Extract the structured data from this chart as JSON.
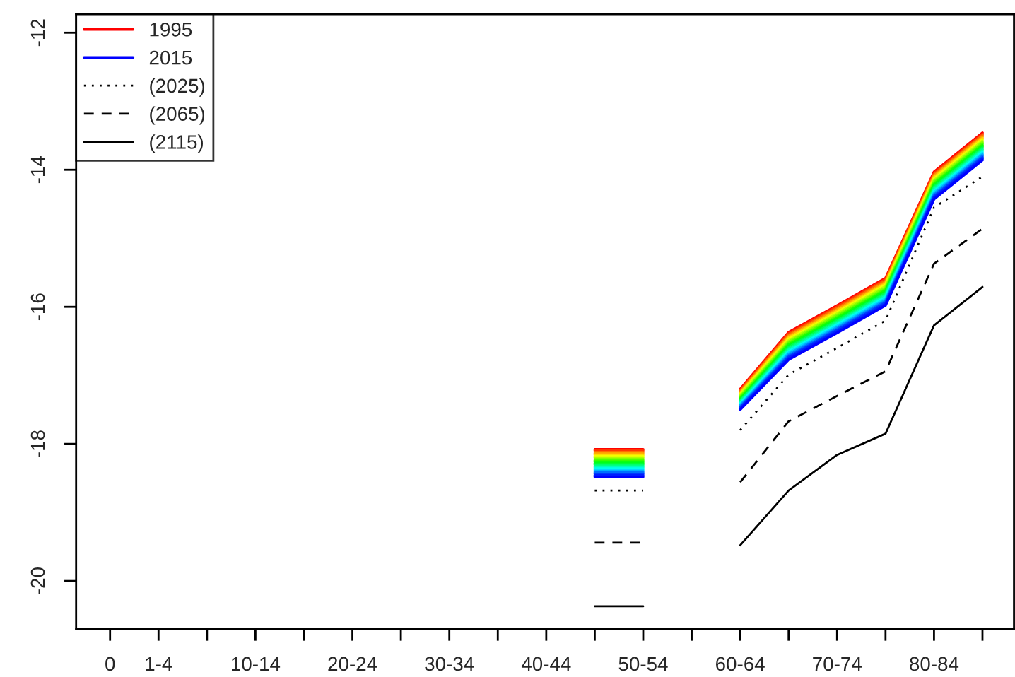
{
  "chart_data": {
    "type": "line",
    "categories": [
      "0",
      "1-4",
      null,
      "10-14",
      null,
      "20-24",
      null,
      "30-34",
      null,
      "40-44",
      null,
      "50-54",
      null,
      "60-64",
      null,
      "70-74",
      null,
      "80-84",
      null
    ],
    "ylim": [
      -20.7,
      -11.73
    ],
    "yticks": [
      -20,
      -18,
      -16,
      -14,
      -12
    ],
    "grid": false,
    "legend": "top left",
    "line_style": "solid",
    "series": [
      {
        "name": "1995",
        "color": "#ff0000",
        "values": [
          null,
          null,
          null,
          null,
          null,
          null,
          null,
          null,
          null,
          null,
          -18.08,
          -18.08,
          null,
          -17.2,
          -16.37,
          -15.98,
          -15.58,
          -14.03,
          -13.46
        ]
      },
      {
        "color": "#ff3500",
        "values": [
          null,
          null,
          null,
          null,
          null,
          null,
          null,
          null,
          null,
          null,
          -18.1,
          -18.1,
          null,
          -17.22,
          -16.39,
          -16.0,
          -15.6,
          -14.05,
          -13.48
        ]
      },
      {
        "color": "#ff6b00",
        "values": [
          null,
          null,
          null,
          null,
          null,
          null,
          null,
          null,
          null,
          null,
          -18.12,
          -18.12,
          null,
          -17.23,
          -16.41,
          -16.02,
          -15.62,
          -14.07,
          -13.5
        ]
      },
      {
        "color": "#ffa100",
        "values": [
          null,
          null,
          null,
          null,
          null,
          null,
          null,
          null,
          null,
          null,
          -18.14,
          -18.14,
          null,
          -17.25,
          -16.43,
          -16.04,
          -15.64,
          -14.09,
          -13.52
        ]
      },
      {
        "color": "#ffd600",
        "values": [
          null,
          null,
          null,
          null,
          null,
          null,
          null,
          null,
          null,
          null,
          -18.16,
          -18.16,
          null,
          -17.26,
          -16.45,
          -16.06,
          -15.66,
          -14.11,
          -13.54
        ]
      },
      {
        "color": "#f2ff00",
        "values": [
          null,
          null,
          null,
          null,
          null,
          null,
          null,
          null,
          null,
          null,
          -18.18,
          -18.18,
          null,
          -17.28,
          -16.47,
          -16.08,
          -15.68,
          -14.13,
          -13.56
        ]
      },
      {
        "color": "#bdff00",
        "values": [
          null,
          null,
          null,
          null,
          null,
          null,
          null,
          null,
          null,
          null,
          -18.2,
          -18.2,
          null,
          -17.29,
          -16.49,
          -16.1,
          -15.7,
          -14.15,
          -13.58
        ]
      },
      {
        "color": "#87ff00",
        "values": [
          null,
          null,
          null,
          null,
          null,
          null,
          null,
          null,
          null,
          null,
          -18.22,
          -18.22,
          null,
          -17.31,
          -16.51,
          -16.12,
          -15.72,
          -14.17,
          -13.6
        ]
      },
      {
        "color": "#52ff00",
        "values": [
          null,
          null,
          null,
          null,
          null,
          null,
          null,
          null,
          null,
          null,
          -18.24,
          -18.24,
          null,
          -17.32,
          -16.53,
          -16.14,
          -15.74,
          -14.19,
          -13.62
        ]
      },
      {
        "color": "#1cff00",
        "values": [
          null,
          null,
          null,
          null,
          null,
          null,
          null,
          null,
          null,
          null,
          -18.26,
          -18.26,
          null,
          -17.34,
          -16.55,
          -16.16,
          -15.76,
          -14.21,
          -13.64
        ]
      },
      {
        "color": "#00ff1a",
        "values": [
          null,
          null,
          null,
          null,
          null,
          null,
          null,
          null,
          null,
          null,
          -18.28,
          -18.28,
          null,
          -17.35,
          -16.57,
          -16.18,
          -15.78,
          -14.23,
          -13.66
        ]
      },
      {
        "color": "#00ff4f",
        "values": [
          null,
          null,
          null,
          null,
          null,
          null,
          null,
          null,
          null,
          null,
          -18.3,
          -18.3,
          null,
          -17.37,
          -16.59,
          -16.2,
          -15.8,
          -14.25,
          -13.68
        ]
      },
      {
        "color": "#00ff85",
        "values": [
          null,
          null,
          null,
          null,
          null,
          null,
          null,
          null,
          null,
          null,
          -18.32,
          -18.32,
          null,
          -17.38,
          -16.61,
          -16.22,
          -15.82,
          -14.27,
          -13.7
        ]
      },
      {
        "color": "#00ffba",
        "values": [
          null,
          null,
          null,
          null,
          null,
          null,
          null,
          null,
          null,
          null,
          -18.34,
          -18.34,
          null,
          -17.4,
          -16.63,
          -16.24,
          -15.84,
          -14.29,
          -13.72
        ]
      },
      {
        "color": "#00fff0",
        "values": [
          null,
          null,
          null,
          null,
          null,
          null,
          null,
          null,
          null,
          null,
          -18.36,
          -18.36,
          null,
          -17.41,
          -16.65,
          -16.26,
          -15.86,
          -14.31,
          -13.74
        ]
      },
      {
        "color": "#00d9ff",
        "values": [
          null,
          null,
          null,
          null,
          null,
          null,
          null,
          null,
          null,
          null,
          -18.38,
          -18.38,
          null,
          -17.43,
          -16.67,
          -16.28,
          -15.88,
          -14.33,
          -13.76
        ]
      },
      {
        "color": "#00a3ff",
        "values": [
          null,
          null,
          null,
          null,
          null,
          null,
          null,
          null,
          null,
          null,
          -18.4,
          -18.4,
          null,
          -17.44,
          -16.69,
          -16.3,
          -15.9,
          -14.35,
          -13.78
        ]
      },
      {
        "color": "#006eff",
        "values": [
          null,
          null,
          null,
          null,
          null,
          null,
          null,
          null,
          null,
          null,
          -18.42,
          -18.42,
          null,
          -17.46,
          -16.71,
          -16.32,
          -15.92,
          -14.37,
          -13.8
        ]
      },
      {
        "color": "#0038ff",
        "values": [
          null,
          null,
          null,
          null,
          null,
          null,
          null,
          null,
          null,
          null,
          -18.44,
          -18.44,
          null,
          -17.47,
          -16.73,
          -16.34,
          -15.94,
          -14.39,
          -13.82
        ]
      },
      {
        "color": "#001cff",
        "values": [
          null,
          null,
          null,
          null,
          null,
          null,
          null,
          null,
          null,
          null,
          -18.46,
          -18.46,
          null,
          -17.49,
          -16.75,
          -16.36,
          -15.96,
          -14.41,
          -13.84
        ]
      },
      {
        "name": "2015",
        "color": "#0000ff",
        "values": [
          null,
          null,
          null,
          null,
          null,
          null,
          null,
          null,
          null,
          null,
          -18.48,
          -18.48,
          null,
          -17.5,
          -16.77,
          -16.38,
          -15.98,
          -14.43,
          -13.86
        ]
      },
      {
        "name": "(2025)",
        "color": "#000000",
        "line_style": "dotted",
        "values": [
          null,
          null,
          null,
          null,
          null,
          null,
          null,
          null,
          null,
          null,
          -18.68,
          -18.68,
          null,
          -17.8,
          -16.99,
          -16.6,
          -16.2,
          -14.55,
          -14.1
        ]
      },
      {
        "name": "(2065)",
        "color": "#000000",
        "line_style": "dashed",
        "values": [
          null,
          null,
          null,
          null,
          null,
          null,
          null,
          null,
          null,
          null,
          -19.44,
          -19.44,
          null,
          -18.56,
          -17.67,
          -17.3,
          -16.94,
          -15.37,
          -14.86
        ]
      },
      {
        "name": "(2115)",
        "color": "#000000",
        "line_style": "solid",
        "values": [
          null,
          null,
          null,
          null,
          null,
          null,
          null,
          null,
          null,
          null,
          -20.37,
          -20.37,
          null,
          -19.48,
          -18.68,
          -18.16,
          -17.85,
          -16.27,
          -15.71
        ]
      }
    ]
  }
}
